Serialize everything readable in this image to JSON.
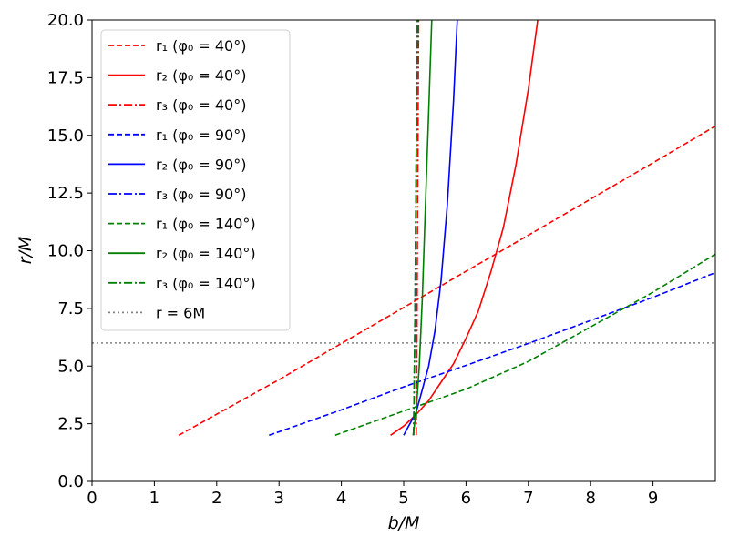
{
  "chart_data": {
    "type": "line",
    "xlabel": "b/M",
    "ylabel": "r/M",
    "xlim": [
      0,
      10
    ],
    "ylim": [
      0,
      20
    ],
    "xticks": [
      "0",
      "1",
      "2",
      "3",
      "4",
      "5",
      "6",
      "7",
      "8",
      "9"
    ],
    "yticks": [
      "0.0",
      "2.5",
      "5.0",
      "7.5",
      "10.0",
      "12.5",
      "15.0",
      "17.5",
      "20.0"
    ],
    "grid": false,
    "legend_position": "top-left",
    "reference_line": {
      "name": "r = 6M",
      "y": 6,
      "color": "#808080",
      "style": "dotted"
    },
    "series": [
      {
        "name": "r₁ (φ₀ = 40°)",
        "color": "#ff0000",
        "style": "dashed",
        "x": [
          1.39,
          3.0,
          4.0,
          5.0,
          6.0,
          7.0,
          8.0,
          9.0,
          10.0
        ],
        "y": [
          2.0,
          4.41,
          5.98,
          7.54,
          9.11,
          10.67,
          12.24,
          13.81,
          15.4
        ]
      },
      {
        "name": "r₂ (φ₀ = 40°)",
        "color": "#ff0000",
        "style": "solid",
        "x": [
          4.79,
          5.0,
          5.2,
          5.4,
          5.6,
          5.8,
          6.0,
          6.2,
          6.4,
          6.6,
          6.8,
          7.0,
          7.15
        ],
        "y": [
          2.0,
          2.4,
          2.9,
          3.5,
          4.3,
          5.1,
          6.2,
          7.4,
          9.1,
          11.0,
          13.7,
          17.0,
          20.0
        ]
      },
      {
        "name": "r₃ (φ₀ = 40°)",
        "color": "#ff0000",
        "style": "dashdot",
        "x": [
          5.2,
          5.21,
          5.22,
          5.23,
          5.24
        ],
        "y": [
          2.0,
          5.0,
          10.0,
          15.0,
          20.0
        ]
      },
      {
        "name": "r₁ (φ₀ = 90°)",
        "color": "#0000ff",
        "style": "dashed",
        "x": [
          2.84,
          4.0,
          5.0,
          6.0,
          7.0,
          8.0,
          9.0,
          10.0
        ],
        "y": [
          2.0,
          3.1,
          4.1,
          5.03,
          5.98,
          6.98,
          7.98,
          9.05
        ]
      },
      {
        "name": "r₂ (φ₀ = 90°)",
        "color": "#0000ff",
        "style": "solid",
        "x": [
          5.0,
          5.2,
          5.4,
          5.5,
          5.6,
          5.7,
          5.8,
          5.86
        ],
        "y": [
          2.0,
          3.0,
          5.0,
          6.5,
          8.7,
          12.0,
          16.5,
          20.0
        ]
      },
      {
        "name": "r₃ (φ₀ = 90°)",
        "color": "#0000ff",
        "style": "dashdot",
        "x": [
          5.16,
          5.18,
          5.2,
          5.22
        ],
        "y": [
          2.0,
          7.0,
          14.0,
          20.0
        ]
      },
      {
        "name": "r₁ (φ₀ = 140°)",
        "color": "#008000",
        "style": "dashed",
        "x": [
          3.9,
          5.0,
          6.0,
          7.0,
          8.0,
          9.0,
          10.0
        ],
        "y": [
          2.0,
          3.05,
          4.0,
          5.2,
          6.7,
          8.2,
          9.85
        ]
      },
      {
        "name": "r₂ (φ₀ = 140°)",
        "color": "#008000",
        "style": "solid",
        "x": [
          5.15,
          5.2,
          5.25,
          5.3,
          5.35,
          5.4,
          5.45
        ],
        "y": [
          2.0,
          3.0,
          5.0,
          8.0,
          12.0,
          16.0,
          20.0
        ]
      },
      {
        "name": "r₃ (φ₀ = 140°)",
        "color": "#008000",
        "style": "dashdot",
        "x": [
          5.16,
          5.18,
          5.2,
          5.22
        ],
        "y": [
          2.0,
          7.0,
          14.0,
          20.0
        ]
      }
    ]
  }
}
